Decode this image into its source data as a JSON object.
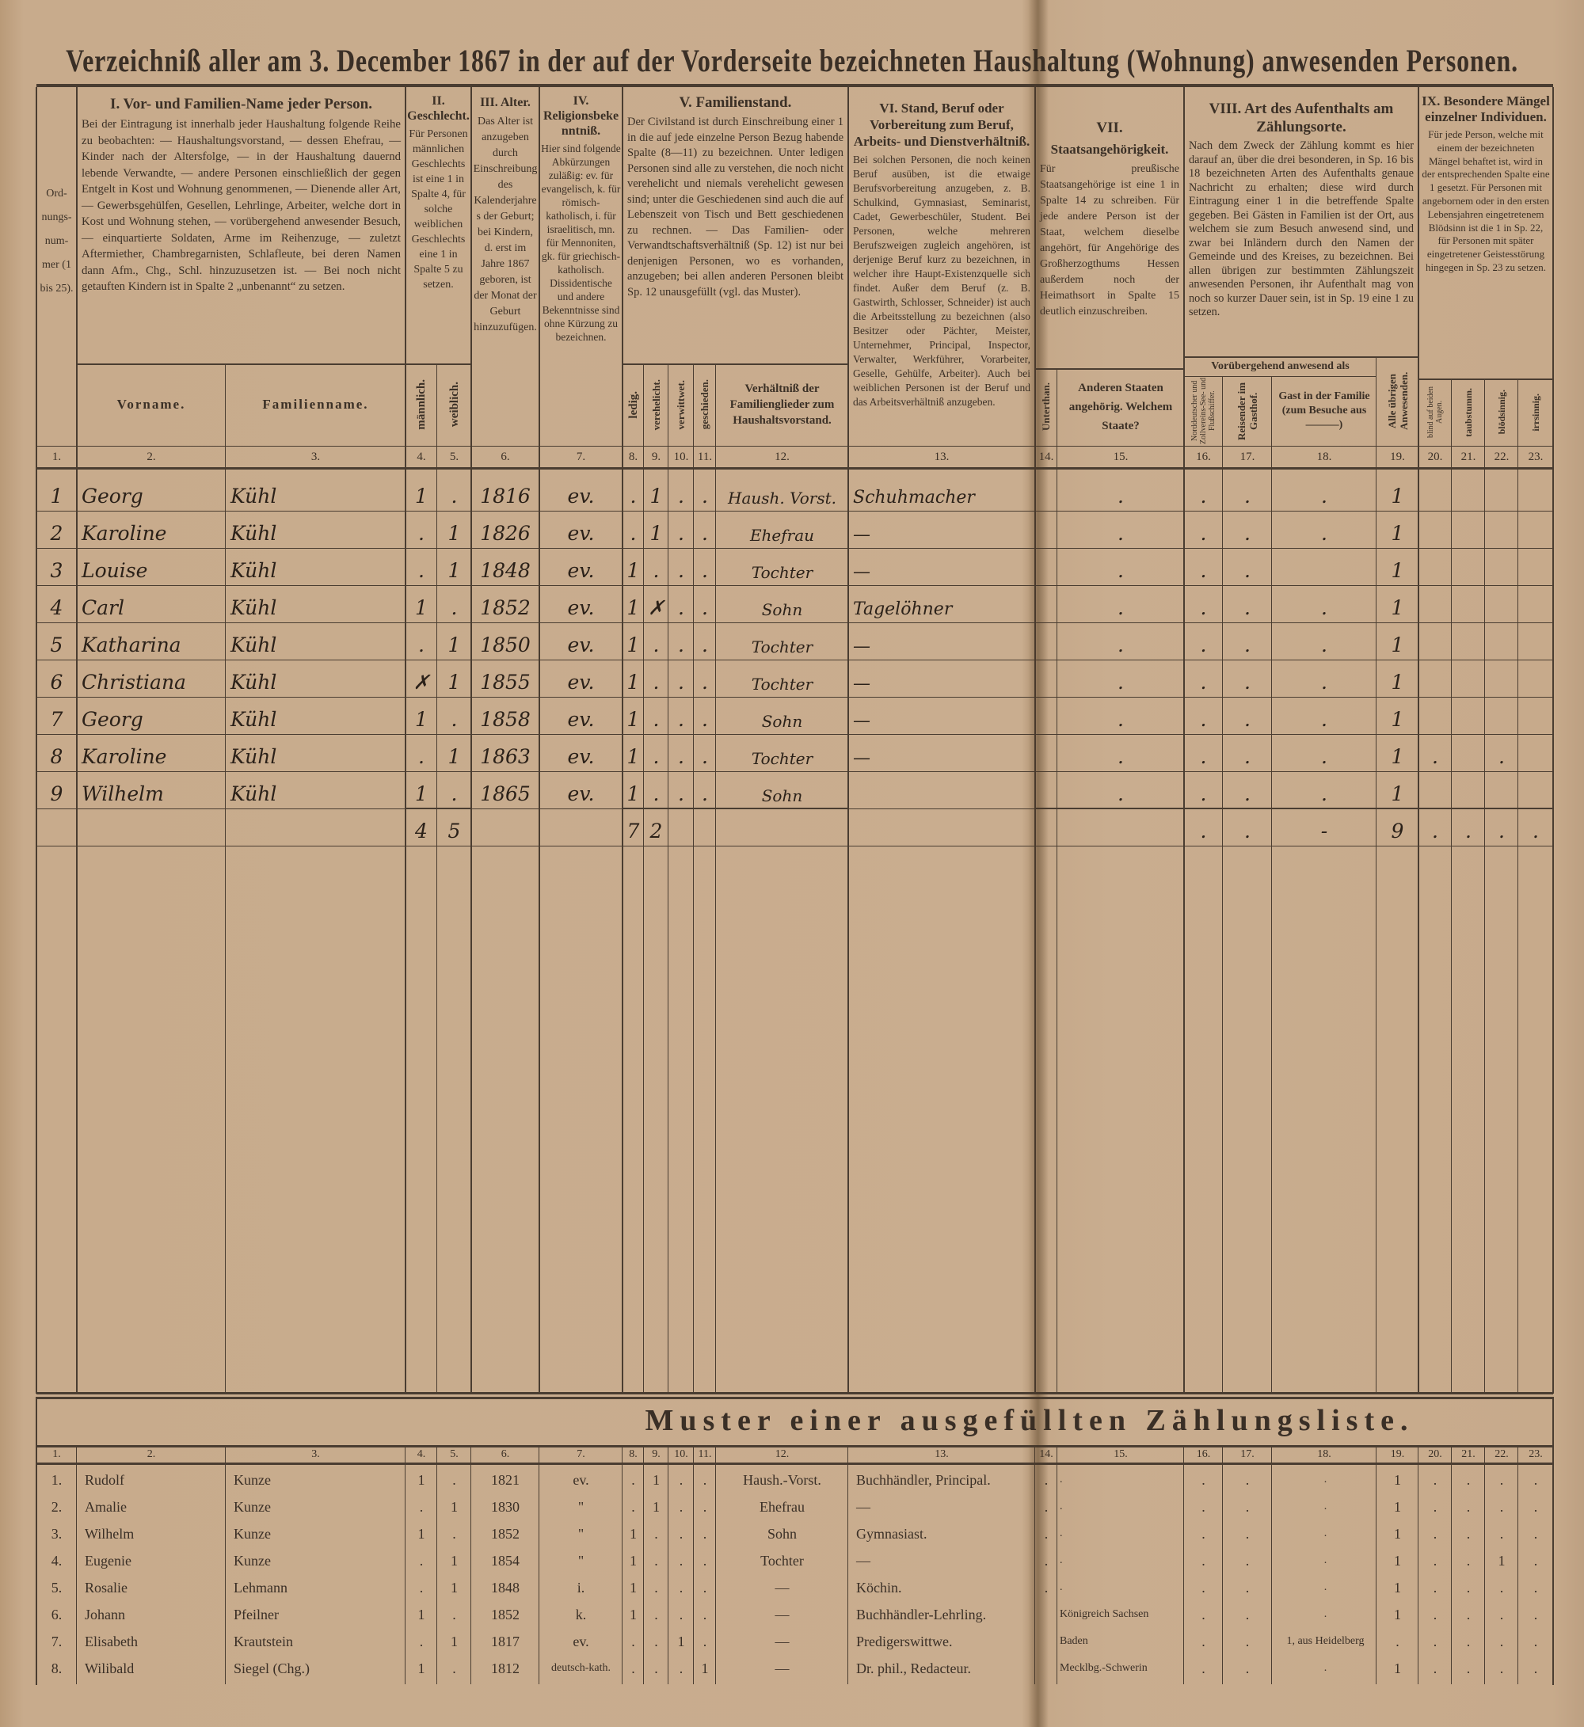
{
  "title": "Verzeichniß aller am 3. December 1867 in der auf der Vorderseite bezeichneten Haushaltung (Wohnung) anwesenden Personen.",
  "header": {
    "col1": "Ord-nungs-num-mer (1 bis 25).",
    "I": {
      "title": "I. Vor- und Familien-Name jeder Person.",
      "text": "Bei der Eintragung ist innerhalb jeder Haushaltung folgende Reihe zu beobachten: — Haushaltungsvorstand, — dessen Ehefrau, — Kinder nach der Altersfolge, — in der Haushaltung dauernd lebende Verwandte, — andere Personen einschließlich der gegen Entgelt in Kost und Wohnung genommenen, — Dienende aller Art, — Gewerbsgehülfen, Gesellen, Lehrlinge, Arbeiter, welche dort in Kost und Wohnung stehen, — vorübergehend anwesender Besuch, — einquartierte Soldaten, Arme im Reihenzuge, — zuletzt Aftermiether, Chambregarnisten, Schlafleute, bei deren Namen dann Afm., Chg., Schl. hinzuzusetzen ist. — Bei noch nicht getauften Kindern ist in Spalte 2 „unbenannt“ zu setzen.",
      "vorname": "Vorname.",
      "familienname": "Familienname."
    },
    "II": {
      "title": "II. Geschlecht.",
      "text": "Für Personen männlichen Geschlechts ist eine 1 in Spalte 4, für solche weiblichen Geschlechts eine 1 in Spalte 5 zu setzen.",
      "male": "männlich.",
      "female": "weiblich."
    },
    "III": {
      "title": "III. Alter.",
      "text": "Das Alter ist anzugeben durch Einschreibung des Kalenderjahres der Geburt; bei Kindern, d. erst im Jahre 1867 geboren, ist der Monat der Geburt hinzuzufügen."
    },
    "IV": {
      "title": "IV. Religionsbekenntniß.",
      "text": "Hier sind folgende Abkürzungen zuläßig: ev. für evangelisch, k. für römisch-katholisch, i. für israelitisch, mn. für Mennoniten, gk. für griechisch-katholisch. Dissidentische und andere Bekenntnisse sind ohne Kürzung zu bezeichnen."
    },
    "V": {
      "title": "V. Familienstand.",
      "text": "Der Civilstand ist durch Einschreibung einer 1 in die auf jede einzelne Person Bezug habende Spalte (8—11) zu bezeichnen. Unter ledigen Personen sind alle zu verstehen, die noch nicht verehelicht und niemals verehelicht gewesen sind; unter die Geschiedenen sind auch die auf Lebenszeit von Tisch und Bett geschiedenen zu rechnen. — Das Familien- oder Verwandtschaftsverhältniß (Sp. 12) ist nur bei denjenigen Personen, wo es vorhanden, anzugeben; bei allen anderen Personen bleibt Sp. 12 unausgefüllt (vgl. das Muster).",
      "ledig": "ledig.",
      "verehelicht": "verehelicht.",
      "verwittwet": "verwittwet.",
      "geschieden": "geschieden.",
      "relation": "Verhältniß der Familienglieder zum Haushaltsvorstand."
    },
    "VI": {
      "title": "VI. Stand, Beruf oder Vorbereitung zum Beruf, Arbeits- und Dienstverhältniß.",
      "text": "Bei solchen Personen, die noch keinen Beruf ausüben, ist die etwaige Berufsvorbereitung anzugeben, z. B. Schulkind, Gymnasiast, Seminarist, Cadet, Gewerbeschüler, Student. Bei Personen, welche mehreren Berufszweigen zugleich angehören, ist derjenige Beruf kurz zu bezeichnen, in welcher ihre Haupt-Existenzquelle sich findet. Außer dem Beruf (z. B. Gastwirth, Schlosser, Schneider) ist auch die Arbeitsstellung zu bezeichnen (also Besitzer oder Pächter, Meister, Unternehmer, Principal, Inspector, Verwalter, Werkführer, Vorarbeiter, Geselle, Gehülfe, Arbeiter). Auch bei weiblichen Personen ist der Beruf und das Arbeitsverhältniß anzugeben."
    },
    "VII": {
      "title": "VII.",
      "subtitle": "Staatsangehörigkeit.",
      "text": "Für preußische Staatsangehörige ist eine 1 in Spalte 14 zu schreiben. Für jede andere Person ist der Staat, welchem dieselbe angehört, für Angehörige des Großherzogthums Hessen außerdem noch der Heimathsort in Spalte 15 deutlich einzuschreiben.",
      "unterthan": "Unterthan.",
      "other": "Anderen Staaten angehörig. Welchem Staate?"
    },
    "VIII": {
      "title": "VIII. Art des Aufenthalts am Zählungsorte.",
      "text": "Nach dem Zweck der Zählung kommt es hier darauf an, über die drei besonderen, in Sp. 16 bis 18 bezeichneten Arten des Aufenthalts genaue Nachricht zu erhalten; diese wird durch Eintragung einer 1 in die betreffende Spalte gegeben. Bei Gästen in Familien ist der Ort, aus welchem sie zum Besuch anwesend sind, und zwar bei Inländern durch den Namen der Gemeinde und des Kreises, zu bezeichnen. Bei allen übrigen zur bestimmten Zählungszeit anwesenden Personen, ihr Aufenthalt mag von noch so kurzer Dauer sein, ist in Sp. 19 eine 1 zu setzen.",
      "temporary": "Vorübergehend anwesend als",
      "c16": "Norddeutscher und Zollvereins-See- und Flußschiffer.",
      "c17": "Reisender im Gasthof.",
      "c18": "Gast in der Familie (zum Besuche aus ———)",
      "c19": "Alle übrigen Anwesenden."
    },
    "IX": {
      "title": "IX. Besondere Mängel einzelner Individuen.",
      "text": "Für jede Person, welche mit einem der bezeichneten Mängel behaftet ist, wird in der entsprechenden Spalte eine 1 gesetzt. Für Personen mit angebornem oder in den ersten Lebensjahren eingetretenem Blödsinn ist die 1 in Sp. 22, für Personen mit später eingetretener Geistesstörung hingegen in Sp. 23 zu setzen.",
      "c20": "blind auf beiden Augen.",
      "c21": "taubstumm.",
      "c22": "blödsinnig.",
      "c23": "irrsinnig."
    }
  },
  "column_numbers": [
    "1.",
    "2.",
    "3.",
    "4.",
    "5.",
    "6.",
    "7.",
    "8.",
    "9.",
    "10.",
    "11.",
    "12.",
    "13.",
    "14.",
    "15.",
    "16.",
    "17.",
    "18.",
    "19.",
    "20.",
    "21.",
    "22.",
    "23."
  ],
  "main_table": {
    "rows": [
      [
        "1",
        "Georg",
        "Kühl",
        "1",
        ".",
        "1816",
        "ev.",
        ".",
        "1",
        ".",
        ".",
        "Haush. Vorst.",
        "Schuhmacher",
        "",
        ".",
        ".",
        ".",
        ".",
        "1",
        "",
        "",
        "",
        ""
      ],
      [
        "2",
        "Karoline",
        "Kühl",
        ".",
        "1",
        "1826",
        "ev.",
        ".",
        "1",
        ".",
        ".",
        "Ehefrau",
        "—",
        "",
        ".",
        ".",
        ".",
        ".",
        "1",
        "",
        "",
        "",
        ""
      ],
      [
        "3",
        "Louise",
        "Kühl",
        ".",
        "1",
        "1848",
        "ev.",
        "1",
        ".",
        ".",
        ".",
        "Tochter",
        "—",
        "",
        ".",
        ".",
        ".",
        "",
        "1",
        "",
        "",
        "",
        ""
      ],
      [
        "4",
        "Carl",
        "Kühl",
        "1",
        ".",
        "1852",
        "ev.",
        "1",
        "✗",
        ".",
        ".",
        "Sohn",
        "Tagelöhner",
        "",
        ".",
        ".",
        ".",
        ".",
        "1",
        "",
        "",
        "",
        ""
      ],
      [
        "5",
        "Katharina",
        "Kühl",
        ".",
        "1",
        "1850",
        "ev.",
        "1",
        ".",
        ".",
        ".",
        "Tochter",
        "—",
        "",
        ".",
        ".",
        ".",
        ".",
        "1",
        "",
        "",
        "",
        ""
      ],
      [
        "6",
        "Christiana",
        "Kühl",
        "✗",
        "1",
        "1855",
        "ev.",
        "1",
        ".",
        ".",
        ".",
        "Tochter",
        "—",
        "",
        ".",
        ".",
        ".",
        ".",
        "1",
        "",
        "",
        "",
        ""
      ],
      [
        "7",
        "Georg",
        "Kühl",
        "1",
        ".",
        "1858",
        "ev.",
        "1",
        ".",
        ".",
        ".",
        "Sohn",
        "—",
        "",
        ".",
        ".",
        ".",
        ".",
        "1",
        "",
        "",
        "",
        ""
      ],
      [
        "8",
        "Karoline",
        "Kühl",
        ".",
        "1",
        "1863",
        "ev.",
        "1",
        ".",
        ".",
        ".",
        "Tochter",
        "—",
        "",
        ".",
        ".",
        ".",
        ".",
        "1",
        ".",
        "",
        ".",
        ""
      ],
      [
        "9",
        "Wilhelm",
        "Kühl",
        "1",
        ".",
        "1865",
        "ev.",
        "1",
        ".",
        ".",
        ".",
        "Sohn",
        "",
        "",
        ".",
        ".",
        ".",
        ".",
        "1",
        "",
        "",
        "",
        ""
      ]
    ],
    "totals": [
      "",
      "",
      "",
      "4",
      "5",
      "",
      "",
      "7",
      "2",
      "",
      "",
      "",
      "",
      "",
      "",
      ".",
      ".",
      "-",
      "9",
      ".",
      ".",
      ".",
      "."
    ]
  },
  "muster": {
    "title": "Muster einer ausgefüllten Zählungsliste.",
    "rows": [
      [
        "1.",
        "Rudolf",
        "Kunze",
        "1",
        ".",
        "1821",
        "ev.",
        ".",
        "1",
        ".",
        ".",
        "Haush.-Vorst.",
        "Buchhändler, Principal.",
        ".",
        ".",
        ".",
        ".",
        ".",
        "1",
        ".",
        ".",
        ".",
        "."
      ],
      [
        "2.",
        "Amalie",
        "Kunze",
        ".",
        "1",
        "1830",
        "\"",
        ".",
        "1",
        ".",
        ".",
        "Ehefrau",
        "—",
        ".",
        ".",
        ".",
        ".",
        ".",
        "1",
        ".",
        ".",
        ".",
        "."
      ],
      [
        "3.",
        "Wilhelm",
        "Kunze",
        "1",
        ".",
        "1852",
        "\"",
        "1",
        ".",
        ".",
        ".",
        "Sohn",
        "Gymnasiast.",
        ".",
        ".",
        ".",
        ".",
        ".",
        "1",
        ".",
        ".",
        ".",
        "."
      ],
      [
        "4.",
        "Eugenie",
        "Kunze",
        ".",
        "1",
        "1854",
        "\"",
        "1",
        ".",
        ".",
        ".",
        "Tochter",
        "—",
        ".",
        ".",
        ".",
        ".",
        ".",
        "1",
        ".",
        ".",
        "1",
        "."
      ],
      [
        "5.",
        "Rosalie",
        "Lehmann",
        ".",
        "1",
        "1848",
        "i.",
        "1",
        ".",
        ".",
        ".",
        "—",
        "Köchin.",
        ".",
        ".",
        ".",
        ".",
        ".",
        "1",
        ".",
        ".",
        ".",
        "."
      ],
      [
        "6.",
        "Johann",
        "Pfeilner",
        "1",
        ".",
        "1852",
        "k.",
        "1",
        ".",
        ".",
        ".",
        "—",
        "Buchhändler-Lehrling.",
        "",
        "Königreich Sachsen",
        ".",
        ".",
        ".",
        "1",
        ".",
        ".",
        ".",
        "."
      ],
      [
        "7.",
        "Elisabeth",
        "Krautstein",
        ".",
        "1",
        "1817",
        "ev.",
        ".",
        ".",
        "1",
        ".",
        "—",
        "Predigerswittwe.",
        "",
        "Baden",
        ".",
        ".",
        "1, aus Heidelberg",
        ".",
        ".",
        ".",
        ".",
        "."
      ],
      [
        "8.",
        "Wilibald",
        "Siegel (Chg.)",
        "1",
        ".",
        "1812",
        "deutsch-kath.",
        ".",
        ".",
        ".",
        "1",
        "—",
        "Dr. phil., Redacteur.",
        "",
        "Mecklbg.-Schwerin",
        ".",
        ".",
        ".",
        "1",
        ".",
        ".",
        ".",
        "."
      ]
    ]
  },
  "colors": {
    "paper": "#c9ad8f",
    "ink": "#3b3026",
    "handwriting": "#2b2119"
  }
}
